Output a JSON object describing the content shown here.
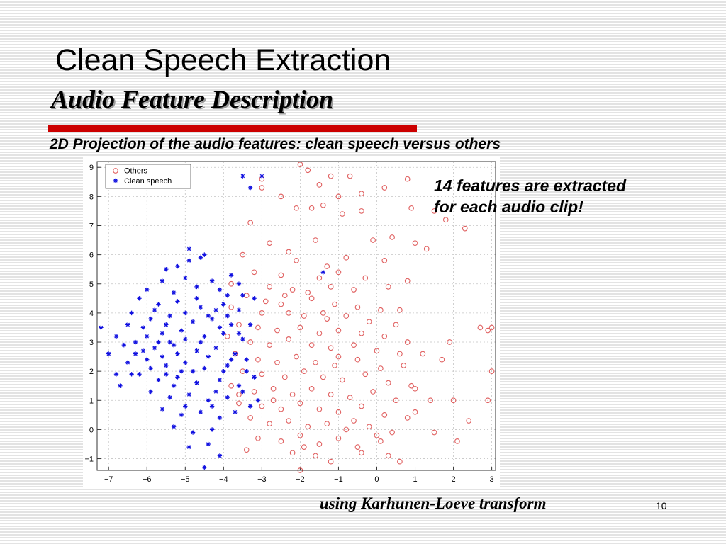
{
  "slide": {
    "title": "Clean Speech Extraction",
    "subtitle": "Audio Feature Description",
    "caption": "2D Projection of the audio features: clean speech versus others",
    "note_line1": "14 features are extracted",
    "note_line2": "for each audio clip!",
    "method": "using Karhunen-Loeve transform",
    "page_number": "10"
  },
  "colors": {
    "others": "#e06060",
    "clean_speech": "#1010e0",
    "accent_rule": "#cc0000"
  },
  "chart_data": {
    "type": "scatter",
    "title": "",
    "xlabel": "",
    "ylabel": "",
    "xlim": [
      -7.3,
      3.1
    ],
    "ylim": [
      -1.4,
      9.2
    ],
    "xticks": [
      -7,
      -6,
      -5,
      -4,
      -3,
      -2,
      -1,
      0,
      1,
      2,
      3
    ],
    "yticks": [
      -1,
      0,
      1,
      2,
      3,
      4,
      5,
      6,
      7,
      8,
      9
    ],
    "grid": true,
    "legend_position": "top-left",
    "series": [
      {
        "name": "Others",
        "marker": "circle",
        "color": "#e06060",
        "points": [
          [
            -2.0,
            9.1
          ],
          [
            -1.8,
            8.9
          ],
          [
            -1.2,
            8.7
          ],
          [
            -0.7,
            8.7
          ],
          [
            -1.5,
            8.4
          ],
          [
            -3.0,
            8.6
          ],
          [
            -3.0,
            8.3
          ],
          [
            -2.5,
            8.0
          ],
          [
            -1.0,
            8.0
          ],
          [
            -0.4,
            8.1
          ],
          [
            0.8,
            8.6
          ],
          [
            0.2,
            8.3
          ],
          [
            -1.4,
            7.7
          ],
          [
            -2.1,
            7.6
          ],
          [
            -0.4,
            7.5
          ],
          [
            -0.9,
            7.4
          ],
          [
            -1.7,
            7.6
          ],
          [
            1.5,
            7.5
          ],
          [
            1.8,
            7.2
          ],
          [
            0.9,
            7.6
          ],
          [
            2.3,
            6.9
          ],
          [
            -0.1,
            6.5
          ],
          [
            0.4,
            6.6
          ],
          [
            -1.6,
            6.5
          ],
          [
            1.0,
            6.4
          ],
          [
            1.3,
            6.2
          ],
          [
            -2.3,
            6.1
          ],
          [
            -3.5,
            6.0
          ],
          [
            -2.1,
            5.8
          ],
          [
            -0.8,
            5.9
          ],
          [
            0.2,
            5.8
          ],
          [
            -1.3,
            5.6
          ],
          [
            -3.2,
            5.4
          ],
          [
            -2.5,
            5.3
          ],
          [
            -1.5,
            5.2
          ],
          [
            -1.0,
            5.4
          ],
          [
            -0.3,
            5.2
          ],
          [
            0.8,
            5.1
          ],
          [
            -3.8,
            5.0
          ],
          [
            -2.8,
            4.9
          ],
          [
            -2.2,
            4.8
          ],
          [
            -1.8,
            4.7
          ],
          [
            -1.2,
            4.9
          ],
          [
            -0.6,
            4.8
          ],
          [
            0.3,
            4.9
          ],
          [
            -3.4,
            4.6
          ],
          [
            -2.9,
            4.4
          ],
          [
            -2.5,
            4.3
          ],
          [
            -1.7,
            4.5
          ],
          [
            -1.1,
            4.3
          ],
          [
            -0.5,
            4.2
          ],
          [
            0.1,
            4.1
          ],
          [
            -3.8,
            4.2
          ],
          [
            -3.0,
            4.0
          ],
          [
            -2.3,
            4.0
          ],
          [
            -1.9,
            3.9
          ],
          [
            -1.3,
            3.8
          ],
          [
            -0.8,
            3.9
          ],
          [
            -0.2,
            3.7
          ],
          [
            0.5,
            3.6
          ],
          [
            -3.6,
            3.6
          ],
          [
            -3.1,
            3.5
          ],
          [
            -2.6,
            3.4
          ],
          [
            -2.0,
            3.5
          ],
          [
            -1.5,
            3.3
          ],
          [
            -1.0,
            3.4
          ],
          [
            -0.4,
            3.3
          ],
          [
            0.2,
            3.2
          ],
          [
            0.8,
            3.0
          ],
          [
            -3.9,
            3.2
          ],
          [
            -3.3,
            3.0
          ],
          [
            -2.8,
            2.9
          ],
          [
            -2.3,
            3.1
          ],
          [
            -1.7,
            2.9
          ],
          [
            -1.2,
            2.8
          ],
          [
            -0.6,
            2.9
          ],
          [
            0.0,
            2.7
          ],
          [
            0.6,
            2.6
          ],
          [
            -3.7,
            2.6
          ],
          [
            -3.1,
            2.4
          ],
          [
            -2.6,
            2.3
          ],
          [
            -2.1,
            2.5
          ],
          [
            -1.6,
            2.3
          ],
          [
            -1.1,
            2.2
          ],
          [
            -0.5,
            2.4
          ],
          [
            0.1,
            2.1
          ],
          [
            0.7,
            2.2
          ],
          [
            -3.5,
            2.0
          ],
          [
            -3.0,
            1.9
          ],
          [
            -2.4,
            1.8
          ],
          [
            -1.9,
            2.0
          ],
          [
            -1.4,
            1.8
          ],
          [
            -0.9,
            1.7
          ],
          [
            -0.3,
            1.9
          ],
          [
            0.3,
            1.6
          ],
          [
            0.9,
            1.5
          ],
          [
            -3.8,
            1.5
          ],
          [
            -3.2,
            1.3
          ],
          [
            -2.7,
            1.4
          ],
          [
            -2.2,
            1.2
          ],
          [
            -1.7,
            1.4
          ],
          [
            -1.2,
            1.2
          ],
          [
            -0.7,
            1.1
          ],
          [
            -0.1,
            1.3
          ],
          [
            0.5,
            1.0
          ],
          [
            -3.6,
            0.9
          ],
          [
            -3.0,
            0.8
          ],
          [
            -2.5,
            0.7
          ],
          [
            -2.0,
            0.9
          ],
          [
            -1.5,
            0.7
          ],
          [
            -1.0,
            0.6
          ],
          [
            -0.4,
            0.8
          ],
          [
            0.2,
            0.5
          ],
          [
            0.8,
            0.4
          ],
          [
            -3.3,
            0.4
          ],
          [
            -2.8,
            0.2
          ],
          [
            -2.3,
            0.3
          ],
          [
            -1.8,
            0.1
          ],
          [
            -1.3,
            0.2
          ],
          [
            -0.8,
            0.0
          ],
          [
            -0.2,
            0.1
          ],
          [
            0.4,
            -0.1
          ],
          [
            -3.1,
            -0.3
          ],
          [
            -2.5,
            -0.4
          ],
          [
            -2.0,
            -0.2
          ],
          [
            -1.5,
            -0.5
          ],
          [
            -1.0,
            -0.3
          ],
          [
            -0.5,
            -0.6
          ],
          [
            0.1,
            -0.4
          ],
          [
            -2.2,
            -0.8
          ],
          [
            -1.6,
            -0.9
          ],
          [
            -1.2,
            -1.1
          ],
          [
            -0.4,
            -0.8
          ],
          [
            0.3,
            -0.9
          ],
          [
            -2.0,
            -1.4
          ],
          [
            1.4,
            1.0
          ],
          [
            1.0,
            1.4
          ],
          [
            2.0,
            1.0
          ],
          [
            2.4,
            0.3
          ],
          [
            2.1,
            -0.4
          ],
          [
            1.5,
            -0.1
          ],
          [
            1.0,
            0.6
          ],
          [
            0.6,
            -1.1
          ],
          [
            2.7,
            3.5
          ],
          [
            2.9,
            3.4
          ],
          [
            3.0,
            3.5
          ],
          [
            3.0,
            2.0
          ],
          [
            2.9,
            1.0
          ],
          [
            1.9,
            3.0
          ],
          [
            1.7,
            2.4
          ],
          [
            -3.3,
            7.1
          ],
          [
            0.6,
            4.1
          ],
          [
            -2.8,
            6.4
          ],
          [
            -3.6,
            1.2
          ],
          [
            -3.4,
            -0.7
          ],
          [
            -2.7,
            1.0
          ],
          [
            -1.9,
            -0.6
          ],
          [
            -0.6,
            0.3
          ],
          [
            0.0,
            -0.2
          ],
          [
            1.2,
            2.6
          ],
          [
            -2.4,
            4.6
          ],
          [
            -1.0,
            2.5
          ],
          [
            -1.4,
            4.0
          ]
        ]
      },
      {
        "name": "Clean speech",
        "marker": "star",
        "color": "#1010e0",
        "points": [
          [
            -3.5,
            8.7
          ],
          [
            -3.0,
            8.7
          ],
          [
            -3.3,
            8.3
          ],
          [
            -6.8,
            3.2
          ],
          [
            -6.5,
            3.6
          ],
          [
            -6.3,
            2.6
          ],
          [
            -6.4,
            1.9
          ],
          [
            -6.7,
            1.5
          ],
          [
            -7.2,
            3.5
          ],
          [
            -7.0,
            2.6
          ],
          [
            -5.5,
            5.5
          ],
          [
            -5.2,
            5.6
          ],
          [
            -4.9,
            5.8
          ],
          [
            -4.5,
            6.0
          ],
          [
            -4.9,
            6.2
          ],
          [
            -4.6,
            5.9
          ],
          [
            -3.8,
            5.3
          ],
          [
            -5.6,
            5.1
          ],
          [
            -5.0,
            5.2
          ],
          [
            -4.3,
            5.1
          ],
          [
            -3.6,
            5.0
          ],
          [
            -6.0,
            4.8
          ],
          [
            -5.3,
            4.7
          ],
          [
            -4.7,
            4.9
          ],
          [
            -4.1,
            4.8
          ],
          [
            -3.5,
            4.6
          ],
          [
            -6.2,
            4.5
          ],
          [
            -5.7,
            4.3
          ],
          [
            -5.2,
            4.4
          ],
          [
            -4.6,
            4.2
          ],
          [
            -4.0,
            4.3
          ],
          [
            -3.6,
            4.1
          ],
          [
            -6.4,
            4.0
          ],
          [
            -5.9,
            3.8
          ],
          [
            -5.4,
            3.9
          ],
          [
            -4.8,
            3.7
          ],
          [
            -4.3,
            3.8
          ],
          [
            -3.8,
            3.6
          ],
          [
            -6.1,
            3.5
          ],
          [
            -5.6,
            3.3
          ],
          [
            -5.1,
            3.4
          ],
          [
            -4.5,
            3.2
          ],
          [
            -4.0,
            3.3
          ],
          [
            -3.5,
            3.1
          ],
          [
            -6.3,
            3.0
          ],
          [
            -5.8,
            2.8
          ],
          [
            -5.3,
            2.9
          ],
          [
            -4.7,
            2.7
          ],
          [
            -4.2,
            2.8
          ],
          [
            -3.7,
            2.6
          ],
          [
            -6.0,
            2.4
          ],
          [
            -5.5,
            2.2
          ],
          [
            -5.0,
            2.3
          ],
          [
            -4.5,
            2.1
          ],
          [
            -3.9,
            2.2
          ],
          [
            -3.4,
            2.0
          ],
          [
            -6.2,
            1.9
          ],
          [
            -5.7,
            1.7
          ],
          [
            -5.2,
            1.8
          ],
          [
            -4.7,
            1.6
          ],
          [
            -4.1,
            1.7
          ],
          [
            -3.6,
            1.5
          ],
          [
            -5.9,
            1.3
          ],
          [
            -5.4,
            1.1
          ],
          [
            -4.9,
            1.2
          ],
          [
            -4.4,
            1.0
          ],
          [
            -3.9,
            1.1
          ],
          [
            -5.6,
            0.7
          ],
          [
            -5.1,
            0.5
          ],
          [
            -4.6,
            0.6
          ],
          [
            -4.1,
            0.4
          ],
          [
            -3.7,
            0.6
          ],
          [
            -5.3,
            0.1
          ],
          [
            -4.8,
            -0.1
          ],
          [
            -4.3,
            0.0
          ],
          [
            -4.9,
            -0.6
          ],
          [
            -4.4,
            -0.5
          ],
          [
            -4.5,
            -1.3
          ],
          [
            -4.1,
            -0.9
          ],
          [
            -5.8,
            4.1
          ],
          [
            -5.5,
            3.6
          ],
          [
            -5.0,
            3.1
          ],
          [
            -4.4,
            2.5
          ],
          [
            -5.2,
            2.6
          ],
          [
            -4.8,
            2.0
          ],
          [
            -5.6,
            2.5
          ],
          [
            -4.6,
            3.0
          ],
          [
            -5.4,
            3.0
          ],
          [
            -5.0,
            4.0
          ],
          [
            -4.7,
            4.5
          ],
          [
            -4.2,
            4.1
          ],
          [
            -3.9,
            3.9
          ],
          [
            -3.3,
            3.6
          ],
          [
            -3.4,
            2.4
          ],
          [
            -3.2,
            1.8
          ],
          [
            -3.1,
            1.0
          ],
          [
            -3.3,
            0.8
          ],
          [
            -5.9,
            2.1
          ],
          [
            -6.6,
            2.9
          ],
          [
            -6.8,
            1.9
          ],
          [
            -6.5,
            2.3
          ],
          [
            -5.3,
            1.5
          ],
          [
            -4.2,
            1.3
          ],
          [
            -3.8,
            2.4
          ],
          [
            -3.6,
            3.3
          ],
          [
            -4.1,
            3.5
          ],
          [
            -4.4,
            3.9
          ],
          [
            -5.7,
            3.0
          ],
          [
            -6.0,
            3.2
          ],
          [
            -5.1,
            2.0
          ],
          [
            -4.0,
            2.0
          ],
          [
            -3.5,
            1.3
          ],
          [
            -4.3,
            0.8
          ],
          [
            -5.0,
            0.8
          ],
          [
            -5.5,
            1.9
          ],
          [
            -6.1,
            2.7
          ],
          [
            -3.9,
            4.6
          ],
          [
            -3.2,
            4.5
          ],
          [
            -1.4,
            5.4
          ]
        ]
      }
    ]
  }
}
